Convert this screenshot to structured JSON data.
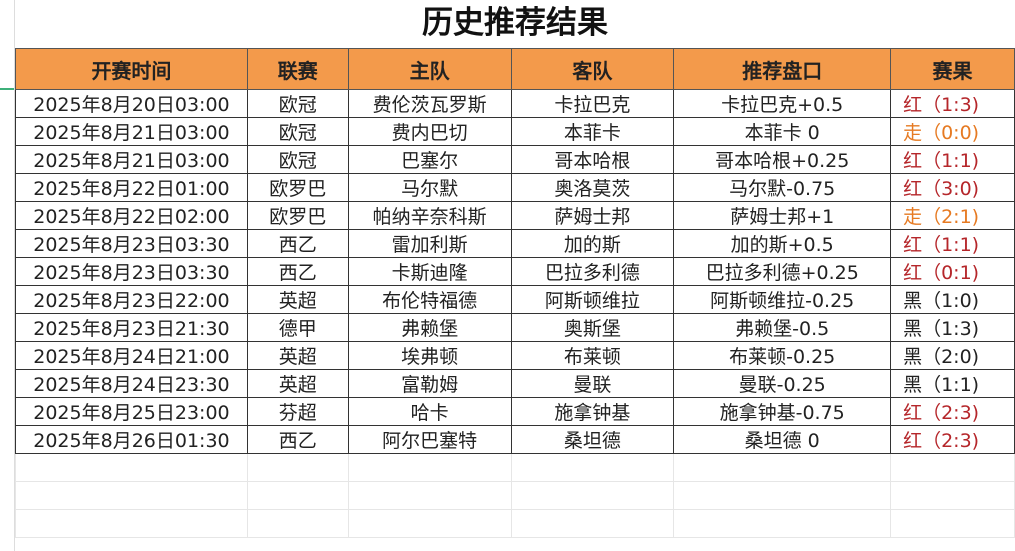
{
  "title": "历史推荐结果",
  "headers": [
    "开赛时间",
    "联赛",
    "主队",
    "客队",
    "推荐盘口",
    "赛果"
  ],
  "colors": {
    "header_bg": "#f39a4b",
    "red": "#b5262a",
    "draw": "#e67a22",
    "black": "#222222"
  },
  "rows": [
    {
      "time": "2025年8月20日03:00",
      "league": "欧冠",
      "home": "费伦茨瓦罗斯",
      "away": "卡拉巴克",
      "pick": "卡拉巴克+0.5",
      "result": "红（1:3)",
      "status": "red"
    },
    {
      "time": "2025年8月21日03:00",
      "league": "欧冠",
      "home": "费内巴切",
      "away": "本菲卡",
      "pick": "本菲卡 0",
      "result": "走（0:0)",
      "status": "orange"
    },
    {
      "time": "2025年8月21日03:00",
      "league": "欧冠",
      "home": "巴塞尔",
      "away": "哥本哈根",
      "pick": "哥本哈根+0.25",
      "result": "红（1:1)",
      "status": "red"
    },
    {
      "time": "2025年8月22日01:00",
      "league": "欧罗巴",
      "home": "马尔默",
      "away": "奥洛莫茨",
      "pick": "马尔默-0.75",
      "result": "红（3:0)",
      "status": "red"
    },
    {
      "time": "2025年8月22日02:00",
      "league": "欧罗巴",
      "home": "帕纳辛奈科斯",
      "away": "萨姆士邦",
      "pick": "萨姆士邦+1",
      "result": "走（2:1)",
      "status": "orange"
    },
    {
      "time": "2025年8月23日03:30",
      "league": "西乙",
      "home": "雷加利斯",
      "away": "加的斯",
      "pick": "加的斯+0.5",
      "result": "红（1:1)",
      "status": "red"
    },
    {
      "time": "2025年8月23日03:30",
      "league": "西乙",
      "home": "卡斯迪隆",
      "away": "巴拉多利德",
      "pick": "巴拉多利德+0.25",
      "result": "红（0:1)",
      "status": "red"
    },
    {
      "time": "2025年8月23日22:00",
      "league": "英超",
      "home": "布伦特福德",
      "away": "阿斯顿维拉",
      "pick": "阿斯顿维拉-0.25",
      "result": "黑（1:0)",
      "status": "black"
    },
    {
      "time": "2025年8月23日21:30",
      "league": "德甲",
      "home": "弗赖堡",
      "away": "奥斯堡",
      "pick": "弗赖堡-0.5",
      "result": "黑（1:3)",
      "status": "black"
    },
    {
      "time": "2025年8月24日21:00",
      "league": "英超",
      "home": "埃弗顿",
      "away": "布莱顿",
      "pick": "布莱顿-0.25",
      "result": "黑（2:0)",
      "status": "black"
    },
    {
      "time": "2025年8月24日23:30",
      "league": "英超",
      "home": "富勒姆",
      "away": "曼联",
      "pick": "曼联-0.25",
      "result": "黑（1:1)",
      "status": "black"
    },
    {
      "time": "2025年8月25日23:00",
      "league": "芬超",
      "home": "哈卡",
      "away": "施拿钟基",
      "pick": "施拿钟基-0.75",
      "result": "红（2:3)",
      "status": "red"
    },
    {
      "time": "2025年8月26日01:30",
      "league": "西乙",
      "home": "阿尔巴塞特",
      "away": "桑坦德",
      "pick": "桑坦德 0",
      "result": "红（2:3)",
      "status": "red"
    }
  ]
}
